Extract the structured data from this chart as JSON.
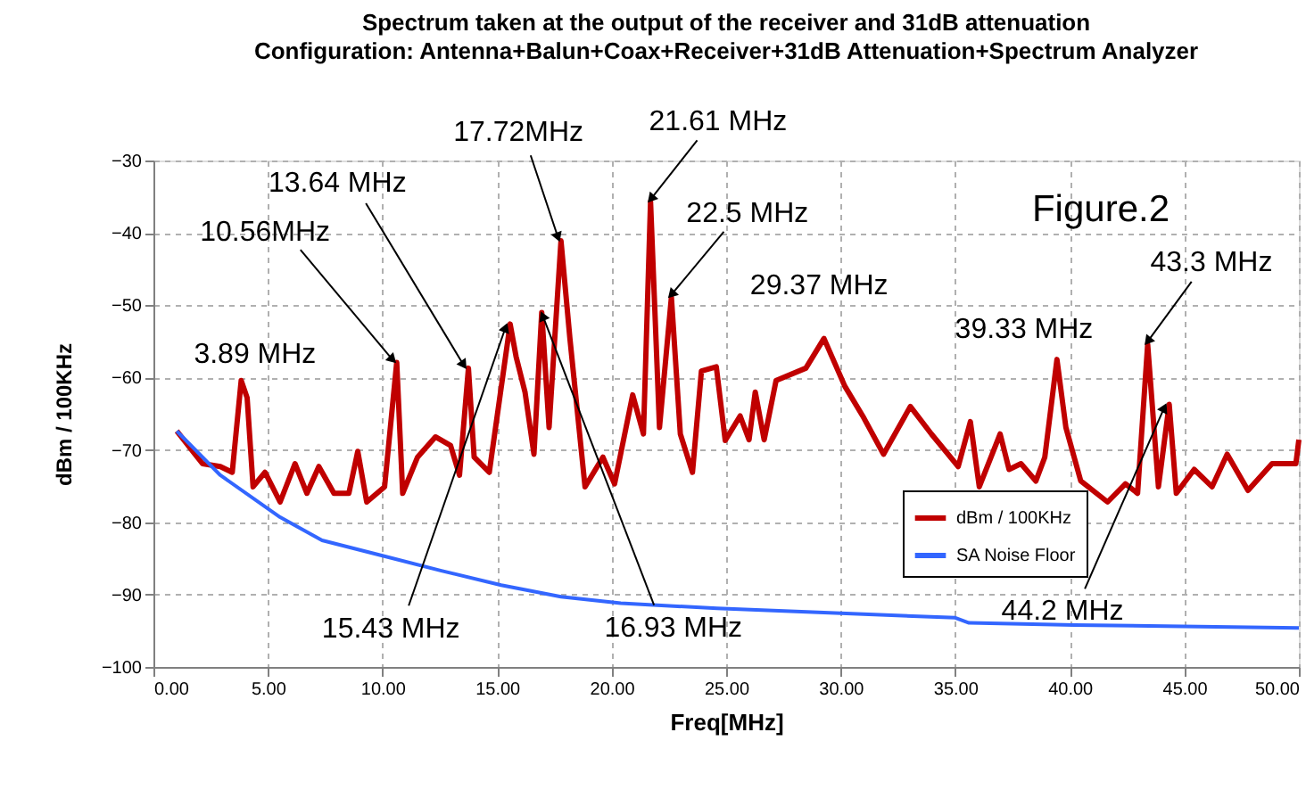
{
  "chart_data": {
    "type": "line",
    "title": "Spectrum taken at the output of the receiver and 31dB attenuation",
    "subtitle": "Configuration: Antenna+Balun+Coax+Receiver+31dB Attenuation+Spectrum Analyzer",
    "xlabel": "Freq[MHz]",
    "ylabel": "dBm / 100KHz",
    "xlim": [
      0,
      50
    ],
    "xticks": [
      {
        "value": 0,
        "label": "0.00"
      },
      {
        "value": 5,
        "label": "5.00"
      },
      {
        "value": 10,
        "label": "10.00"
      },
      {
        "value": 15,
        "label": "15.00"
      },
      {
        "value": 20,
        "label": "20.00"
      },
      {
        "value": 25,
        "label": "25.00"
      },
      {
        "value": 30,
        "label": "30.00"
      },
      {
        "value": 35,
        "label": "35.00"
      },
      {
        "value": 40,
        "label": "40.00"
      },
      {
        "value": 45,
        "label": "45.00"
      },
      {
        "value": 50,
        "label": "50.00"
      }
    ],
    "ylim": [
      -100,
      -30
    ],
    "yticks": [
      -100,
      -90,
      -80,
      -70,
      -60,
      -50,
      -40,
      -30
    ],
    "grid": true,
    "legend": "right",
    "series": [
      {
        "name": "dBm / 100KHz",
        "color": "#c00000",
        "x": [
          1.02,
          2.14,
          2.92,
          3.44,
          3.83,
          4.09,
          4.35,
          4.87,
          5.53,
          6.18,
          6.7,
          7.22,
          7.88,
          8.53,
          8.92,
          9.31,
          10.09,
          10.62,
          10.88,
          11.53,
          12.31,
          12.97,
          13.36,
          13.75,
          14.0,
          14.66,
          15.57,
          15.83,
          16.22,
          16.61,
          16.95,
          17.27,
          17.79,
          18.18,
          18.84,
          19.62,
          20.13,
          20.92,
          21.39,
          21.7,
          22.09,
          22.61,
          23.0,
          23.53,
          23.92,
          24.57,
          24.96,
          25.61,
          26.0,
          26.27,
          26.66,
          27.18,
          28.48,
          29.27,
          30.18,
          30.96,
          31.87,
          33.04,
          33.96,
          35.13,
          35.66,
          36.05,
          36.96,
          37.35,
          37.87,
          38.52,
          38.91,
          39.44,
          39.83,
          40.48,
          41.65,
          42.43,
          42.96,
          43.4,
          43.87,
          44.34,
          44.65,
          45.43,
          46.21,
          46.87,
          47.78,
          48.83,
          49.87,
          50.0
        ],
        "values": [
          -67.4,
          -71.9,
          -72.3,
          -73.1,
          -60.4,
          -62.8,
          -75.1,
          -73.1,
          -77.2,
          -71.9,
          -76.0,
          -72.3,
          -76.0,
          -76.0,
          -70.2,
          -77.2,
          -75.1,
          -57.9,
          -76.0,
          -71.0,
          -68.2,
          -69.4,
          -73.5,
          -58.7,
          -71.0,
          -73.1,
          -52.6,
          -57.1,
          -62.0,
          -70.6,
          -51.0,
          -66.9,
          -41.1,
          -54.6,
          -75.1,
          -71.0,
          -74.7,
          -62.4,
          -67.8,
          -35.7,
          -66.9,
          -48.9,
          -67.8,
          -73.1,
          -59.1,
          -58.5,
          -68.7,
          -65.3,
          -68.6,
          -62.0,
          -68.6,
          -60.4,
          -58.7,
          -54.6,
          -61.2,
          -65.3,
          -70.6,
          -64.0,
          -67.8,
          -72.3,
          -66.1,
          -75.1,
          -67.8,
          -72.7,
          -71.9,
          -74.3,
          -71.0,
          -57.5,
          -66.9,
          -74.3,
          -77.2,
          -74.7,
          -76.0,
          -55.4,
          -75.1,
          -63.7,
          -76.0,
          -72.7,
          -75.1,
          -70.6,
          -75.6,
          -71.9,
          -71.9,
          -68.6
        ]
      },
      {
        "name": "SA Noise Floor",
        "color": "#3366ff",
        "x": [
          1.02,
          2.92,
          5.53,
          7.36,
          9.96,
          12.57,
          15.18,
          17.79,
          20.4,
          24.6,
          35.0,
          35.6,
          40.2,
          50.0
        ],
        "values": [
          -67.4,
          -73.5,
          -79.3,
          -82.5,
          -84.6,
          -86.7,
          -88.7,
          -90.3,
          -91.2,
          -91.9,
          -93.2,
          -93.9,
          -94.2,
          -94.6
        ]
      }
    ],
    "annotations": [
      "Figure.2",
      {
        "text": "3.89 MHz",
        "x": 3.89,
        "y": -60.4
      },
      {
        "text": "10.56MHz",
        "x": 10.56,
        "y": -57.9
      },
      {
        "text": "13.64 MHz",
        "x": 13.64,
        "y": -58.7
      },
      {
        "text": "15.43 MHz",
        "x": 15.43,
        "y": -52.6
      },
      {
        "text": "16.93 MHz",
        "x": 16.93,
        "y": -51.0
      },
      {
        "text": "17.72MHz",
        "x": 17.72,
        "y": -41.1
      },
      {
        "text": "21.61 MHz",
        "x": 21.61,
        "y": -35.7
      },
      {
        "text": "22.5 MHz",
        "x": 22.5,
        "y": -48.9
      },
      {
        "text": "29.37 MHz",
        "x": 29.37,
        "y": -54.6
      },
      {
        "text": "39.33 MHz",
        "x": 39.33,
        "y": -57.5
      },
      {
        "text": "43.3 MHz",
        "x": 43.3,
        "y": -55.4
      },
      {
        "text": "44.2 MHz",
        "x": 44.2,
        "y": -63.7
      }
    ]
  }
}
